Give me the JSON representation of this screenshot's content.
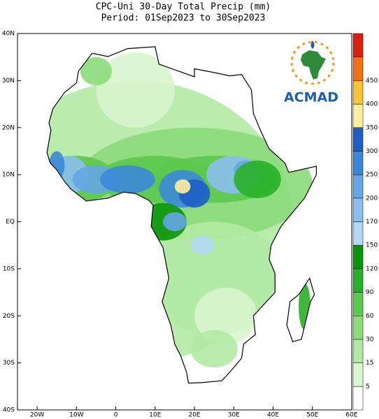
{
  "header": {
    "title": "CPC-Uni 30-Day Total Precip (mm)",
    "subtitle": "Period: 01Sep2023 to 30Sep2023"
  },
  "map": {
    "lat_labels": [
      "40N",
      "30N",
      "20N",
      "10N",
      "EQ",
      "10S",
      "20S",
      "30S",
      "40S"
    ],
    "lon_labels": [
      "20W",
      "10W",
      "0",
      "10E",
      "20E",
      "30E",
      "40E",
      "50E",
      "60E"
    ]
  },
  "colorbar": {
    "labels": [
      5,
      15,
      30,
      60,
      90,
      120,
      150,
      170,
      200,
      250,
      300,
      350,
      400,
      450
    ],
    "colors": [
      "#ffffff",
      "#d8f5cf",
      "#b2eaa4",
      "#8cdc7a",
      "#5cc84e",
      "#28b028",
      "#0a960a",
      "#b4d8f5",
      "#8cc0f0",
      "#64a6e6",
      "#3c88d8",
      "#1e5fc4",
      "#fff0a0",
      "#f8c23c",
      "#f07018",
      "#dc1e10"
    ]
  },
  "logo": {
    "text": "ACMAD"
  }
}
